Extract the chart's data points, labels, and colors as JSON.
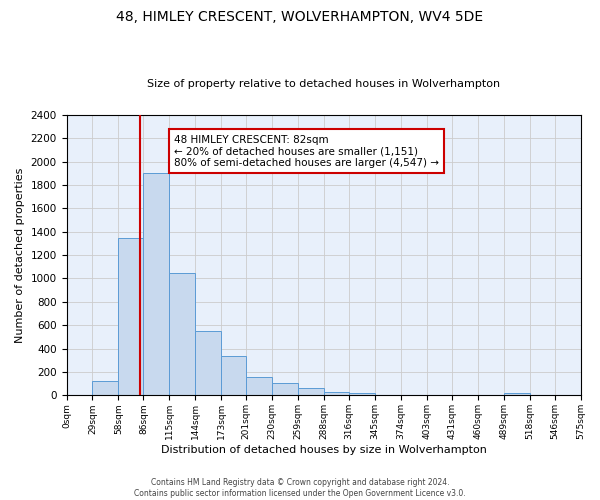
{
  "title": "48, HIMLEY CRESCENT, WOLVERHAMPTON, WV4 5DE",
  "subtitle": "Size of property relative to detached houses in Wolverhampton",
  "xlabel": "Distribution of detached houses by size in Wolverhampton",
  "ylabel": "Number of detached properties",
  "bar_edges": [
    0,
    29,
    58,
    86,
    115,
    144,
    173,
    201,
    230,
    259,
    288,
    316,
    345,
    374,
    403,
    431,
    460,
    489,
    518,
    546,
    575
  ],
  "bar_heights": [
    0,
    125,
    1350,
    1900,
    1050,
    550,
    340,
    160,
    110,
    60,
    30,
    20,
    0,
    0,
    0,
    0,
    0,
    25,
    0,
    0
  ],
  "bar_color": "#c8d9ee",
  "bar_edgecolor": "#5b9bd5",
  "property_line_x": 82,
  "property_line_color": "#cc0000",
  "annotation_line1": "48 HIMLEY CRESCENT: 82sqm",
  "annotation_line2": "← 20% of detached houses are smaller (1,151)",
  "annotation_line3": "80% of semi-detached houses are larger (4,547) →",
  "annotation_box_color": "#ffffff",
  "annotation_box_edgecolor": "#cc0000",
  "ylim": [
    0,
    2400
  ],
  "yticks": [
    0,
    200,
    400,
    600,
    800,
    1000,
    1200,
    1400,
    1600,
    1800,
    2000,
    2200,
    2400
  ],
  "xtick_labels": [
    "0sqm",
    "29sqm",
    "58sqm",
    "86sqm",
    "115sqm",
    "144sqm",
    "173sqm",
    "201sqm",
    "230sqm",
    "259sqm",
    "288sqm",
    "316sqm",
    "345sqm",
    "374sqm",
    "403sqm",
    "431sqm",
    "460sqm",
    "489sqm",
    "518sqm",
    "546sqm",
    "575sqm"
  ],
  "grid_color": "#cccccc",
  "background_color": "#e8f0fb",
  "footer_line1": "Contains HM Land Registry data © Crown copyright and database right 2024.",
  "footer_line2": "Contains public sector information licensed under the Open Government Licence v3.0."
}
